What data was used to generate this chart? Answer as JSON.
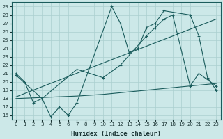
{
  "xlabel": "Humidex (Indice chaleur)",
  "bg_color": "#cce8e8",
  "line_color": "#1a5c5c",
  "grid_color": "#aacfcf",
  "xlim": [
    -0.5,
    23.5
  ],
  "ylim": [
    15.5,
    29.5
  ],
  "yticks": [
    16,
    17,
    18,
    19,
    20,
    21,
    22,
    23,
    24,
    25,
    26,
    27,
    28,
    29
  ],
  "xticks": [
    0,
    1,
    2,
    3,
    4,
    5,
    6,
    7,
    8,
    9,
    10,
    11,
    12,
    13,
    14,
    15,
    16,
    17,
    18,
    19,
    20,
    21,
    22,
    23
  ],
  "line1_x": [
    0,
    1,
    2,
    3,
    4,
    5,
    6,
    7,
    11,
    12,
    13,
    14,
    15,
    16,
    17,
    20,
    21,
    22,
    23
  ],
  "line1_y": [
    21,
    20,
    17.5,
    18,
    15.8,
    17,
    16,
    17.5,
    29,
    27,
    23.5,
    24,
    26.5,
    27,
    28.5,
    28,
    25.5,
    20.5,
    19
  ],
  "line2_x": [
    0,
    3,
    7,
    10,
    12,
    15,
    16,
    17,
    18,
    20,
    21,
    23
  ],
  "line2_y": [
    20.8,
    18,
    21.5,
    20.5,
    22,
    25.5,
    26.5,
    27.5,
    28,
    19.5,
    21,
    19.5
  ],
  "line3_x": [
    0,
    23
  ],
  "line3_y": [
    18.2,
    27.5
  ],
  "line4_x": [
    0,
    7,
    10,
    11,
    12,
    13,
    14,
    15,
    16,
    17,
    18,
    19,
    20,
    21,
    22,
    23
  ],
  "line4_y": [
    18.0,
    18.3,
    18.5,
    18.6,
    18.7,
    18.8,
    18.9,
    19.0,
    19.1,
    19.2,
    19.3,
    19.4,
    19.5,
    19.6,
    19.7,
    19.8
  ]
}
